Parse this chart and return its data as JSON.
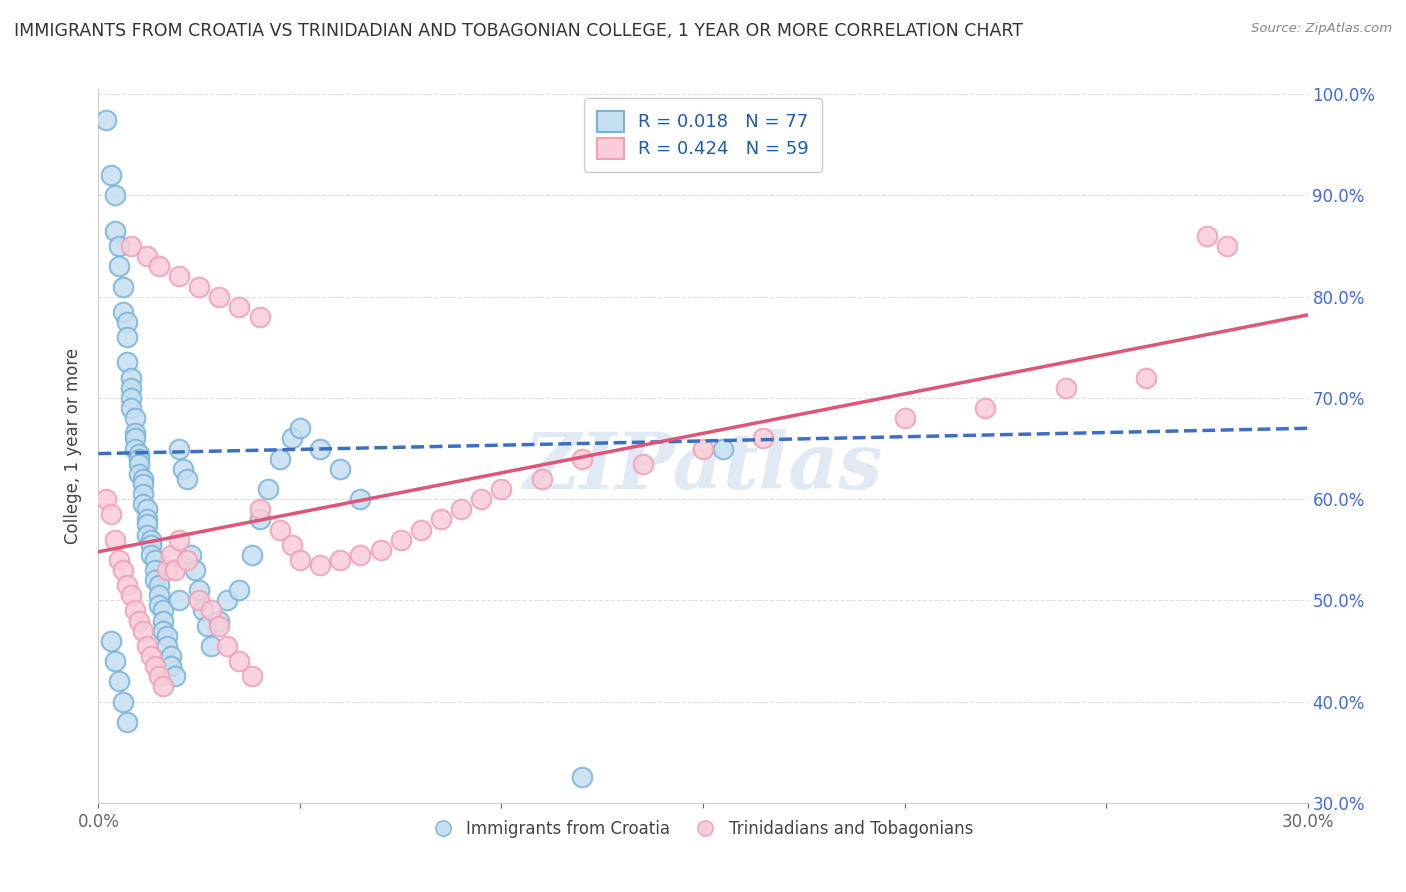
{
  "title": "IMMIGRANTS FROM CROATIA VS TRINIDADIAN AND TOBAGONIAN COLLEGE, 1 YEAR OR MORE CORRELATION CHART",
  "source": "Source: ZipAtlas.com",
  "ylabel": "College, 1 year or more",
  "legend_label_1": "Immigrants from Croatia",
  "legend_label_2": "Trinidadians and Tobagonians",
  "R1": 0.018,
  "N1": 77,
  "R2": 0.424,
  "N2": 59,
  "color_blue_edge": "#7ab3d9",
  "color_pink_edge": "#f0a0b8",
  "color_blue_fill": "#c5dff0",
  "color_pink_fill": "#f8ccd8",
  "color_blue_line": "#3b6fc4",
  "color_pink_line": "#e05575",
  "xmin": 0.0,
  "xmax": 0.3,
  "ymin": 0.3,
  "ymax": 1.005,
  "x_ticks": [
    0.0,
    0.05,
    0.1,
    0.15,
    0.2,
    0.25,
    0.3
  ],
  "y_ticks": [
    0.3,
    0.4,
    0.5,
    0.6,
    0.7,
    0.8,
    0.9,
    1.0
  ],
  "y_tick_labels": [
    "30.0%",
    "40.0%",
    "50.0%",
    "60.0%",
    "70.0%",
    "80.0%",
    "90.0%",
    "100.0%"
  ],
  "watermark": "ZIPatlas",
  "blue_line_x0": 0.0,
  "blue_line_y0": 0.645,
  "blue_line_x1": 0.3,
  "blue_line_y1": 0.67,
  "pink_line_x0": 0.0,
  "pink_line_y0": 0.548,
  "pink_line_x1": 0.3,
  "pink_line_y1": 0.782,
  "blue_scatter_x": [
    0.002,
    0.003,
    0.004,
    0.004,
    0.005,
    0.005,
    0.006,
    0.006,
    0.007,
    0.007,
    0.007,
    0.008,
    0.008,
    0.008,
    0.008,
    0.009,
    0.009,
    0.009,
    0.009,
    0.01,
    0.01,
    0.01,
    0.01,
    0.011,
    0.011,
    0.011,
    0.011,
    0.012,
    0.012,
    0.012,
    0.012,
    0.013,
    0.013,
    0.013,
    0.014,
    0.014,
    0.014,
    0.015,
    0.015,
    0.015,
    0.016,
    0.016,
    0.016,
    0.017,
    0.017,
    0.018,
    0.018,
    0.019,
    0.02,
    0.02,
    0.021,
    0.022,
    0.023,
    0.024,
    0.025,
    0.026,
    0.027,
    0.028,
    0.03,
    0.032,
    0.035,
    0.038,
    0.04,
    0.042,
    0.045,
    0.048,
    0.05,
    0.055,
    0.06,
    0.065,
    0.12,
    0.155,
    0.003,
    0.004,
    0.005,
    0.006,
    0.007
  ],
  "blue_scatter_y": [
    0.975,
    0.92,
    0.9,
    0.865,
    0.85,
    0.83,
    0.81,
    0.785,
    0.775,
    0.76,
    0.735,
    0.72,
    0.71,
    0.7,
    0.69,
    0.68,
    0.665,
    0.66,
    0.65,
    0.645,
    0.64,
    0.635,
    0.625,
    0.62,
    0.615,
    0.605,
    0.595,
    0.59,
    0.58,
    0.575,
    0.565,
    0.56,
    0.555,
    0.545,
    0.54,
    0.53,
    0.52,
    0.515,
    0.505,
    0.495,
    0.49,
    0.48,
    0.47,
    0.465,
    0.455,
    0.445,
    0.435,
    0.425,
    0.5,
    0.65,
    0.63,
    0.62,
    0.545,
    0.53,
    0.51,
    0.49,
    0.475,
    0.455,
    0.48,
    0.5,
    0.51,
    0.545,
    0.58,
    0.61,
    0.64,
    0.66,
    0.67,
    0.65,
    0.63,
    0.6,
    0.325,
    0.65,
    0.46,
    0.44,
    0.42,
    0.4,
    0.38
  ],
  "pink_scatter_x": [
    0.002,
    0.003,
    0.004,
    0.005,
    0.006,
    0.007,
    0.008,
    0.009,
    0.01,
    0.011,
    0.012,
    0.013,
    0.014,
    0.015,
    0.016,
    0.017,
    0.018,
    0.019,
    0.02,
    0.022,
    0.025,
    0.028,
    0.03,
    0.032,
    0.035,
    0.038,
    0.04,
    0.045,
    0.048,
    0.05,
    0.055,
    0.06,
    0.065,
    0.07,
    0.075,
    0.08,
    0.085,
    0.09,
    0.095,
    0.1,
    0.11,
    0.12,
    0.135,
    0.15,
    0.165,
    0.2,
    0.22,
    0.24,
    0.26,
    0.275,
    0.008,
    0.012,
    0.015,
    0.02,
    0.025,
    0.03,
    0.035,
    0.04,
    0.28
  ],
  "pink_scatter_y": [
    0.6,
    0.585,
    0.56,
    0.54,
    0.53,
    0.515,
    0.505,
    0.49,
    0.48,
    0.47,
    0.455,
    0.445,
    0.435,
    0.425,
    0.415,
    0.53,
    0.545,
    0.53,
    0.56,
    0.54,
    0.5,
    0.49,
    0.475,
    0.455,
    0.44,
    0.425,
    0.59,
    0.57,
    0.555,
    0.54,
    0.535,
    0.54,
    0.545,
    0.55,
    0.56,
    0.57,
    0.58,
    0.59,
    0.6,
    0.61,
    0.62,
    0.64,
    0.635,
    0.65,
    0.66,
    0.68,
    0.69,
    0.71,
    0.72,
    0.86,
    0.85,
    0.84,
    0.83,
    0.82,
    0.81,
    0.8,
    0.79,
    0.78,
    0.85
  ]
}
